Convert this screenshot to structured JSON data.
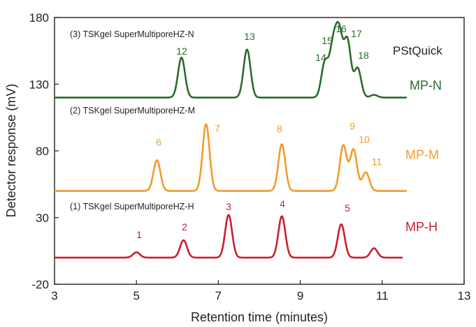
{
  "chart_data": {
    "type": "line",
    "xlabel": "Retention time (minutes)",
    "ylabel": "Detector response (mV)",
    "xlim": [
      3,
      13
    ],
    "ylim": [
      -20,
      180
    ],
    "x_ticks": [
      "3",
      "5",
      "7",
      "9",
      "11",
      "13"
    ],
    "y_ticks": [
      "-20",
      "30",
      "80",
      "130",
      "180"
    ],
    "grid": false,
    "legend": "none",
    "annotation": "PStQuick",
    "series": [
      {
        "name": "(3) TSKgel SuperMultiporeHZ-N",
        "side_label": "MP-N",
        "color": "#2d6a2f",
        "baseline": 120,
        "x_range": [
          3,
          11.6
        ],
        "peaks": [
          {
            "label": "12",
            "x": 6.1,
            "y": 150
          },
          {
            "label": "13",
            "x": 7.7,
            "y": 156
          },
          {
            "label": "14",
            "x": 9.6,
            "y": 146
          },
          {
            "label": "15",
            "x": 9.8,
            "y": 156
          },
          {
            "label": "16",
            "x": 9.95,
            "y": 165
          },
          {
            "label": "17",
            "x": 10.15,
            "y": 162
          },
          {
            "label": "18",
            "x": 10.4,
            "y": 142
          },
          {
            "label": "",
            "x": 10.8,
            "y": 122
          }
        ]
      },
      {
        "name": "(2) TSKgel SuperMultiporeHZ-M",
        "side_label": "MP-M",
        "color": "#f19c2c",
        "baseline": 50,
        "x_range": [
          3,
          11.6
        ],
        "peaks": [
          {
            "label": "6",
            "x": 5.5,
            "y": 73
          },
          {
            "label": "7",
            "x": 6.7,
            "y": 100
          },
          {
            "label": "8",
            "x": 8.55,
            "y": 85
          },
          {
            "label": "9",
            "x": 10.05,
            "y": 84
          },
          {
            "label": "10",
            "x": 10.3,
            "y": 81
          },
          {
            "label": "11",
            "x": 10.6,
            "y": 64
          }
        ]
      },
      {
        "name": "(1) TSKgel SuperMultiporeHZ-H",
        "side_label": "MP-H",
        "color": "#c8202f",
        "baseline": 0,
        "x_range": [
          3,
          11.5
        ],
        "peaks": [
          {
            "label": "1",
            "x": 5.0,
            "y": 4
          },
          {
            "label": "2",
            "x": 6.15,
            "y": 13
          },
          {
            "label": "3",
            "x": 7.25,
            "y": 32
          },
          {
            "label": "4",
            "x": 8.55,
            "y": 31
          },
          {
            "label": "5",
            "x": 10.0,
            "y": 25
          },
          {
            "label": "",
            "x": 10.8,
            "y": 7
          }
        ]
      }
    ]
  }
}
